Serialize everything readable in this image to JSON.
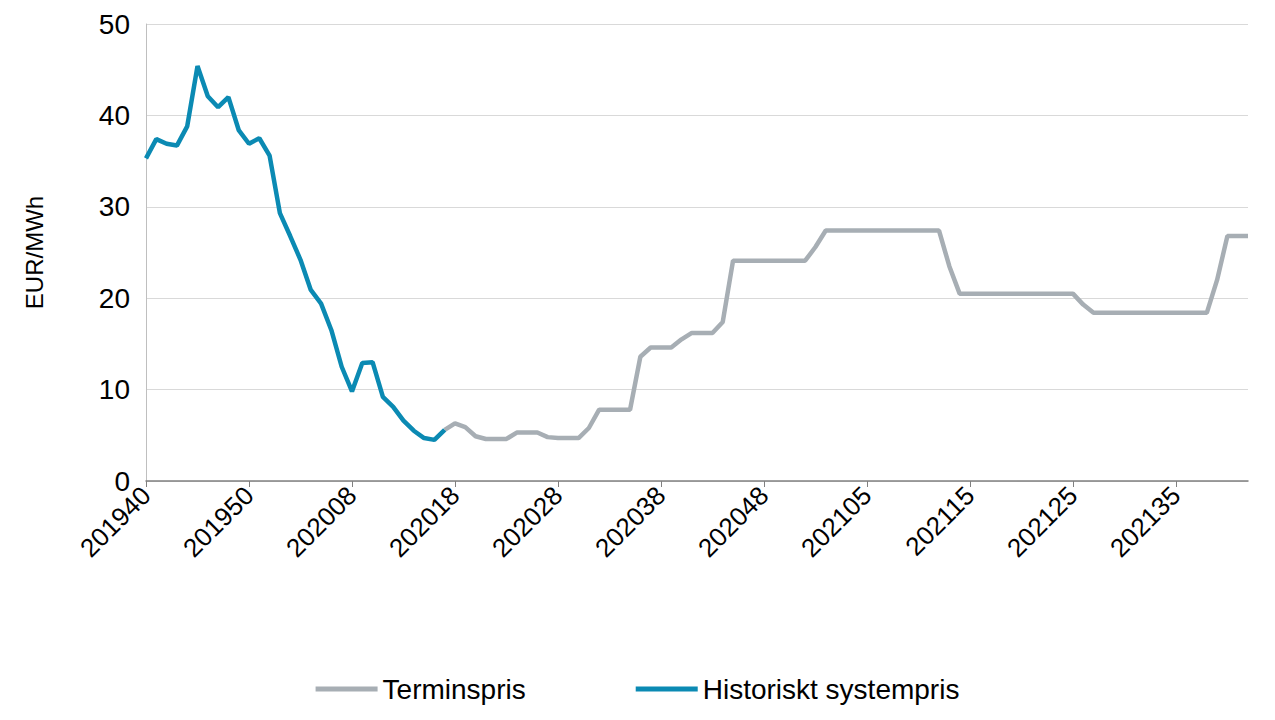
{
  "chart_data": {
    "type": "line",
    "y_label": "EUR/MWh",
    "categories": [
      "201940",
      null,
      null,
      null,
      null,
      null,
      null,
      null,
      null,
      null,
      "201950",
      null,
      null,
      null,
      null,
      null,
      null,
      null,
      null,
      null,
      "202008",
      null,
      null,
      null,
      null,
      null,
      null,
      null,
      null,
      null,
      "202018",
      null,
      null,
      null,
      null,
      null,
      null,
      null,
      null,
      null,
      "202028",
      null,
      null,
      null,
      null,
      null,
      null,
      null,
      null,
      null,
      "202038",
      null,
      null,
      null,
      null,
      null,
      null,
      null,
      null,
      null,
      "202048",
      null,
      null,
      null,
      null,
      null,
      null,
      null,
      null,
      null,
      "202105",
      null,
      null,
      null,
      null,
      null,
      null,
      null,
      null,
      null,
      "202115",
      null,
      null,
      null,
      null,
      null,
      null,
      null,
      null,
      null,
      "202125",
      null,
      null,
      null,
      null,
      null,
      null,
      null,
      null,
      null,
      "202135",
      null,
      null,
      null,
      null,
      null,
      null,
      null
    ],
    "series": [
      {
        "name": "Terminspris",
        "color": "#a7aeb4",
        "values": [
          null,
          null,
          null,
          null,
          null,
          null,
          null,
          null,
          null,
          null,
          null,
          null,
          null,
          null,
          null,
          null,
          null,
          null,
          null,
          null,
          null,
          null,
          null,
          null,
          null,
          null,
          null,
          null,
          null,
          5.6,
          6.3,
          5.9,
          4.9,
          4.6,
          4.6,
          4.6,
          5.3,
          5.3,
          5.3,
          4.8,
          4.7,
          4.7,
          4.7,
          5.8,
          7.8,
          7.8,
          7.8,
          7.8,
          13.6,
          14.6,
          14.6,
          14.6,
          15.5,
          16.2,
          16.2,
          16.2,
          17.4,
          24.1,
          24.1,
          24.1,
          24.1,
          24.1,
          24.1,
          24.1,
          24.1,
          25.6,
          27.4,
          27.4,
          27.4,
          27.4,
          27.4,
          27.4,
          27.4,
          27.4,
          27.4,
          27.4,
          27.4,
          27.4,
          23.5,
          20.5,
          20.5,
          20.5,
          20.5,
          20.5,
          20.5,
          20.5,
          20.5,
          20.5,
          20.5,
          20.5,
          20.5,
          19.3,
          18.4,
          18.4,
          18.4,
          18.4,
          18.4,
          18.4,
          18.4,
          18.4,
          18.4,
          18.4,
          18.4,
          18.4,
          22,
          26.8,
          26.8,
          26.8
        ]
      },
      {
        "name": "Historiskt systempris",
        "color": "#0b8ab3",
        "values": [
          35.3,
          37.4,
          36.9,
          36.7,
          38.8,
          45.4,
          42.1,
          40.9,
          42.0,
          38.4,
          36.9,
          37.5,
          35.6,
          29.3,
          26.8,
          24.2,
          20.9,
          19.4,
          16.5,
          12.5,
          9.8,
          12.9,
          13.0,
          9.2,
          8.1,
          6.6,
          5.5,
          4.7,
          4.5,
          5.6,
          null,
          null,
          null,
          null,
          null,
          null,
          null,
          null,
          null,
          null,
          null,
          null,
          null,
          null,
          null,
          null,
          null,
          null,
          null,
          null,
          null,
          null,
          null,
          null,
          null,
          null,
          null,
          null,
          null,
          null,
          null,
          null,
          null,
          null,
          null,
          null,
          null,
          null,
          null,
          null,
          null,
          null,
          null,
          null,
          null,
          null,
          null,
          null,
          null,
          null,
          null,
          null,
          null,
          null,
          null,
          null,
          null,
          null,
          null,
          null,
          null,
          null,
          null,
          null,
          null,
          null,
          null,
          null,
          null,
          null,
          null,
          null,
          null,
          null,
          null,
          null,
          null,
          null
        ]
      }
    ],
    "ylim": [
      0,
      50
    ],
    "yticks": [
      0,
      10,
      20,
      30,
      40,
      50
    ],
    "grid": true,
    "legend": "bottom"
  }
}
